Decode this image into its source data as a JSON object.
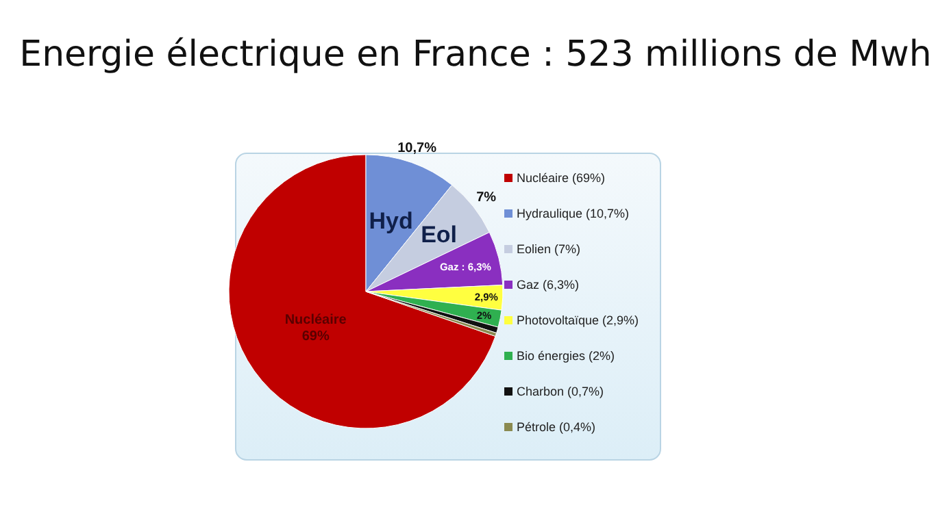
{
  "chart_data": {
    "type": "pie",
    "title": "Energie électrique en France : 523 millions de Mwh",
    "categories": [
      "Nucléaire (69%)",
      "Hydraulique (10,7%)",
      "Eolien (7%)",
      "Gaz (6,3%)",
      "Photovoltaïque (2,9%)",
      "Bio énergies (2%)",
      "Charbon (0,7%)",
      "Pétrole (0,4%)"
    ],
    "values": [
      69,
      10.7,
      7,
      6.3,
      2.9,
      2,
      0.7,
      0.4
    ],
    "colors": [
      "#c00000",
      "#6f8fd6",
      "#c5cde0",
      "#8a2fc0",
      "#ffff40",
      "#2fb050",
      "#111111",
      "#8a8a50"
    ],
    "value_labels": [
      "Nucléaire\n69%",
      "10,7%",
      "7%",
      "Gaz : 6,3%",
      "2,9%",
      "2%",
      null,
      null
    ],
    "annotations": [
      "Hyd",
      "Eol"
    ],
    "legend": "right"
  }
}
